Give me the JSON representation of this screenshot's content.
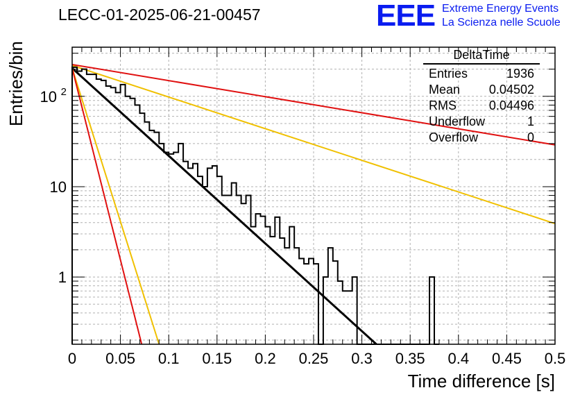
{
  "page": {
    "title": "LECC-01-2025-06-21-00457",
    "logo": {
      "mark": "EEE",
      "line1": "Extreme Energy Events",
      "line2": "La Scienza nelle Scuole"
    }
  },
  "stats_box": {
    "title": "DeltaTime",
    "rows": [
      {
        "label": "Entries",
        "value": "1936"
      },
      {
        "label": "Mean",
        "value": "0.04502"
      },
      {
        "label": "RMS",
        "value": "0.04496"
      },
      {
        "label": "Underflow",
        "value": "1"
      },
      {
        "label": "Overflow",
        "value": "0"
      }
    ]
  },
  "chart_data": {
    "type": "line",
    "xlabel": "Time difference [s]",
    "ylabel": "Entries/bin",
    "xlim": [
      0,
      0.5
    ],
    "ylim": [
      0.18,
      350
    ],
    "yscale": "log",
    "grid": true,
    "xticks": [
      0,
      0.05,
      0.1,
      0.15,
      0.2,
      0.25,
      0.3,
      0.35,
      0.4,
      0.45,
      0.5
    ],
    "xtick_labels": [
      "0",
      "0.05",
      "0.1",
      "0.15",
      "0.2",
      "0.25",
      "0.3",
      "0.35",
      "0.4",
      "0.45",
      "0.5"
    ],
    "yticks": [
      1,
      10,
      100
    ],
    "ytick_labels": [
      "1",
      "10",
      "10^2"
    ],
    "histogram": {
      "bin_width": 0.005,
      "values": [
        210,
        190,
        200,
        175,
        175,
        155,
        150,
        130,
        125,
        110,
        135,
        100,
        95,
        80,
        65,
        52,
        42,
        40,
        30,
        24,
        23,
        24,
        30,
        19,
        16,
        18,
        13,
        10,
        16,
        17,
        13,
        8,
        8,
        11,
        8,
        6.5,
        8,
        3.6,
        5,
        4.7,
        3.6,
        2.8,
        4.6,
        2.7,
        2.1,
        3.6,
        2.1,
        1.6,
        1.4,
        1.6,
        1.4,
        0.15,
        1,
        2.1,
        1.5,
        0.9,
        0.7,
        0.7,
        1,
        0.15,
        0.15,
        0.15,
        0,
        0,
        0,
        0,
        0,
        0,
        0,
        0,
        0,
        0,
        0,
        0,
        1,
        0.15
      ]
    },
    "series": [
      {
        "color": "#000000",
        "points": [
          [
            0,
            205
          ],
          [
            0.315,
            0.18
          ]
        ]
      },
      {
        "color": "#f0c000",
        "points": [
          [
            0,
            220
          ],
          [
            0.5,
            3.9
          ]
        ]
      },
      {
        "color": "#e01010",
        "points": [
          [
            0,
            225
          ],
          [
            0.5,
            29
          ]
        ]
      },
      {
        "color": "#f0c000",
        "points": [
          [
            0,
            205
          ],
          [
            0.09,
            0.18
          ]
        ]
      },
      {
        "color": "#e01010",
        "points": [
          [
            0,
            205
          ],
          [
            0.072,
            0.18
          ]
        ]
      }
    ]
  }
}
